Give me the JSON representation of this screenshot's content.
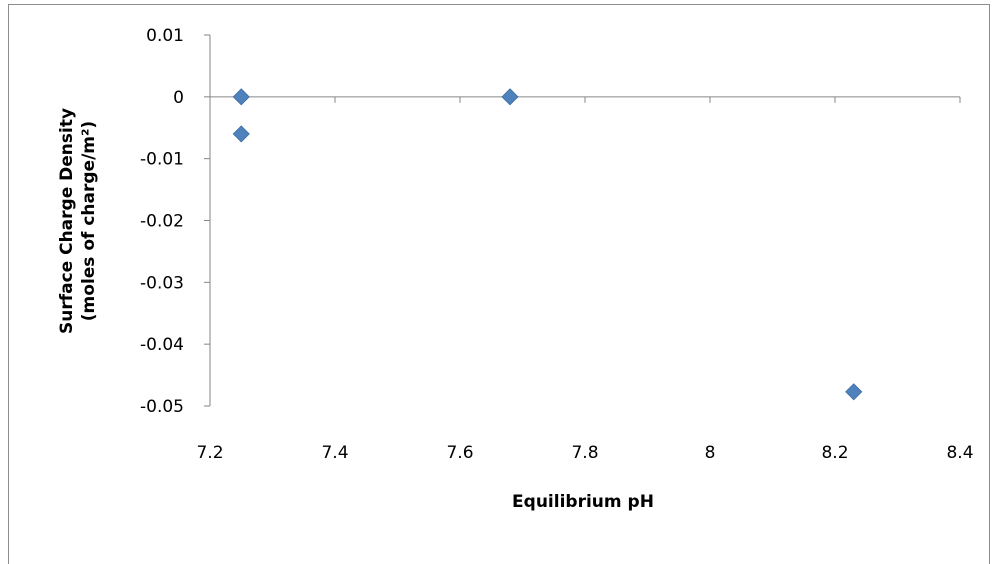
{
  "chart_data": {
    "type": "scatter",
    "xlabel": "Equilibrium pH",
    "ylabel_line1": "Surface Charge Density",
    "ylabel_line2": "(moles of charge/m²)",
    "xlim": [
      7.2,
      8.4
    ],
    "ylim": [
      -0.05,
      0.01
    ],
    "x_ticks": [
      7.2,
      7.4,
      7.6,
      7.8,
      8.0,
      8.2,
      8.4
    ],
    "x_tick_labels": [
      "7.2",
      "7.4",
      "7.6",
      "7.8",
      "8",
      "8.2",
      "8.4"
    ],
    "y_ticks": [
      0.01,
      0,
      -0.01,
      -0.02,
      -0.03,
      -0.04,
      -0.05
    ],
    "y_tick_labels": [
      "0.01",
      "0",
      "-0.01",
      "-0.02",
      "-0.03",
      "-0.04",
      "-0.05"
    ],
    "grid": false,
    "legend": "none",
    "marker": "diamond",
    "color": "#4f81bd",
    "series": [
      {
        "points": [
          {
            "x": 7.25,
            "y": 0.0
          },
          {
            "x": 7.25,
            "y": -0.006
          },
          {
            "x": 7.68,
            "y": 0.0
          },
          {
            "x": 8.23,
            "y": -0.0477
          }
        ]
      }
    ]
  }
}
